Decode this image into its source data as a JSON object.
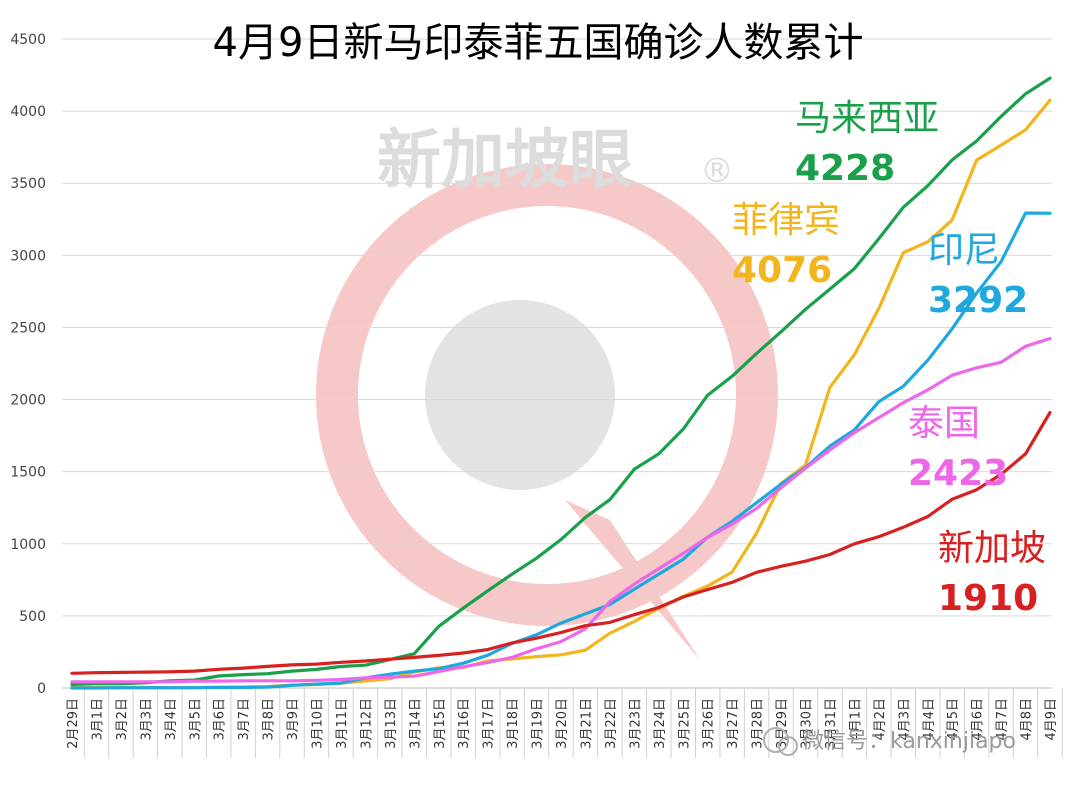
{
  "chart_data": {
    "type": "line",
    "title": "4月9日新马印泰菲五国确诊人数累计",
    "ylim": [
      0,
      4500
    ],
    "yticks": [
      0,
      500,
      1000,
      1500,
      2000,
      2500,
      3000,
      3500,
      4000,
      4500
    ],
    "grid": true,
    "x": [
      "2月29日",
      "3月1日",
      "3月2日",
      "3月3日",
      "3月4日",
      "3月5日",
      "3月6日",
      "3月7日",
      "3月8日",
      "3月9日",
      "3月10日",
      "3月11日",
      "3月12日",
      "3月13日",
      "3月14日",
      "3月15日",
      "3月16日",
      "3月17日",
      "3月18日",
      "3月19日",
      "3月20日",
      "3月21日",
      "3月22日",
      "3月23日",
      "3月24日",
      "3月25日",
      "3月26日",
      "3月27日",
      "3月28日",
      "3月29日",
      "3月30日",
      "3月31日",
      "4月1日",
      "4月2日",
      "4月3日",
      "4月4日",
      "4月5日",
      "4月6日",
      "4月7日",
      "4月8日",
      "4月9日"
    ],
    "series": [
      {
        "name": "马来西亚",
        "end_label": "4228",
        "color": "#1aa04a",
        "values": [
          25,
          29,
          29,
          36,
          50,
          55,
          83,
          93,
          99,
          117,
          129,
          149,
          158,
          197,
          238,
          428,
          553,
          673,
          790,
          900,
          1030,
          1183,
          1306,
          1518,
          1624,
          1796,
          2031,
          2161,
          2320,
          2470,
          2626,
          2766,
          2908,
          3116,
          3333,
          3483,
          3662,
          3793,
          3963,
          4119,
          4228
        ]
      },
      {
        "name": "菲律宾",
        "end_label": "4076",
        "color": "#f2b51c",
        "values": [
          3,
          3,
          3,
          3,
          3,
          3,
          5,
          6,
          10,
          20,
          24,
          33,
          49,
          64,
          111,
          140,
          142,
          187,
          202,
          217,
          230,
          262,
          380,
          462,
          552,
          636,
          707,
          803,
          1075,
          1418,
          1546,
          2084,
          2311,
          2633,
          3018,
          3094,
          3246,
          3660,
          3764,
          3870,
          4076
        ]
      },
      {
        "name": "印尼",
        "end_label": "3292",
        "color": "#1ea8de",
        "values": [
          0,
          0,
          2,
          2,
          2,
          2,
          4,
          4,
          6,
          19,
          27,
          34,
          69,
          96,
          117,
          134,
          172,
          227,
          309,
          369,
          450,
          514,
          579,
          686,
          790,
          893,
          1046,
          1155,
          1285,
          1414,
          1528,
          1677,
          1790,
          1986,
          2092,
          2273,
          2491,
          2738,
          2956,
          3293,
          3292
        ]
      },
      {
        "name": "泰国",
        "end_label": "2423",
        "color": "#ee67e8",
        "values": [
          42,
          42,
          43,
          43,
          43,
          47,
          48,
          50,
          50,
          50,
          53,
          59,
          70,
          75,
          82,
          114,
          147,
          177,
          212,
          272,
          322,
          411,
          599,
          721,
          827,
          934,
          1045,
          1136,
          1245,
          1388,
          1524,
          1651,
          1771,
          1875,
          1978,
          2067,
          2169,
          2220,
          2258,
          2369,
          2423
        ]
      },
      {
        "name": "新加坡",
        "end_label": "1910",
        "color": "#d72020",
        "values": [
          102,
          106,
          108,
          110,
          112,
          117,
          130,
          138,
          150,
          160,
          166,
          178,
          187,
          200,
          212,
          226,
          243,
          266,
          313,
          345,
          385,
          432,
          455,
          509,
          558,
          631,
          683,
          732,
          802,
          844,
          879,
          926,
          1000,
          1049,
          1114,
          1189,
          1309,
          1375,
          1481,
          1623,
          1910
        ]
      }
    ],
    "annotations": [
      {
        "text": "马来西亚",
        "value": "4228",
        "color": "#1aa04a"
      },
      {
        "text": "菲律宾",
        "value": "4076",
        "color": "#f2b51c"
      },
      {
        "text": "印尼",
        "value": "3292",
        "color": "#1ea8de"
      },
      {
        "text": "泰国",
        "value": "2423",
        "color": "#ee67e8"
      },
      {
        "text": "新加坡",
        "value": "1910",
        "color": "#d72020"
      }
    ]
  },
  "watermark": {
    "brand_text": "新加坡眼",
    "registered_mark": "®",
    "wechat_credit": "微信号：kanxinjiapo"
  }
}
